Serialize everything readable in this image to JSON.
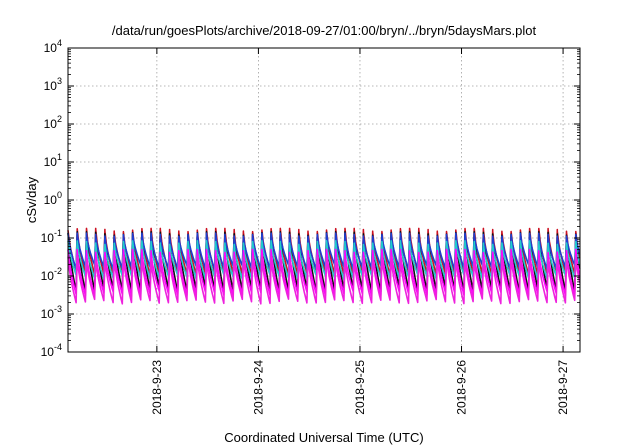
{
  "chart_data": {
    "type": "line",
    "title": "/data/run/goesPlots/archive/2018-09-27/01:00/bryn/../bryn/5daysMars.plot",
    "xlabel": "Coordinated Universal Time (UTC)",
    "ylabel": "cSv/day",
    "yscale": "log",
    "ylim": [
      0.0001,
      10000
    ],
    "xlim": [
      "2018-09-22 03:00",
      "2018-09-27 04:00"
    ],
    "yticks": [
      {
        "base": "10",
        "exp": "-4"
      },
      {
        "base": "10",
        "exp": "-3"
      },
      {
        "base": "10",
        "exp": "-2"
      },
      {
        "base": "10",
        "exp": "-1"
      },
      {
        "base": "10",
        "exp": "0"
      },
      {
        "base": "10",
        "exp": "1"
      },
      {
        "base": "10",
        "exp": "2"
      },
      {
        "base": "10",
        "exp": "3"
      },
      {
        "base": "10",
        "exp": "4"
      }
    ],
    "xticks": [
      {
        "date": "2018-09-23",
        "label": "2018-9-23"
      },
      {
        "date": "2018-09-24",
        "label": "2018-9-24"
      },
      {
        "date": "2018-09-25",
        "label": "2018-9-25"
      },
      {
        "date": "2018-09-26",
        "label": "2018-9-26"
      },
      {
        "date": "2018-09-27",
        "label": "2018-9-27"
      }
    ],
    "grid": true,
    "legend": "none",
    "cycles_per_day": 11,
    "series": [
      {
        "color": "#cc1122",
        "peak": 0.16,
        "trough": 0.014
      },
      {
        "color": "#111111",
        "peak": 0.13,
        "trough": 0.005
      },
      {
        "color": "#1f3fd0",
        "peak": 0.12,
        "trough": 0.02
      },
      {
        "color": "#22cccc",
        "peak": 0.075,
        "trough": 0.011
      },
      {
        "color": "#ff00ff",
        "peak": 0.045,
        "trough": 0.004
      },
      {
        "color": "#ee22dd",
        "peak": 0.03,
        "trough": 0.0025
      }
    ]
  }
}
